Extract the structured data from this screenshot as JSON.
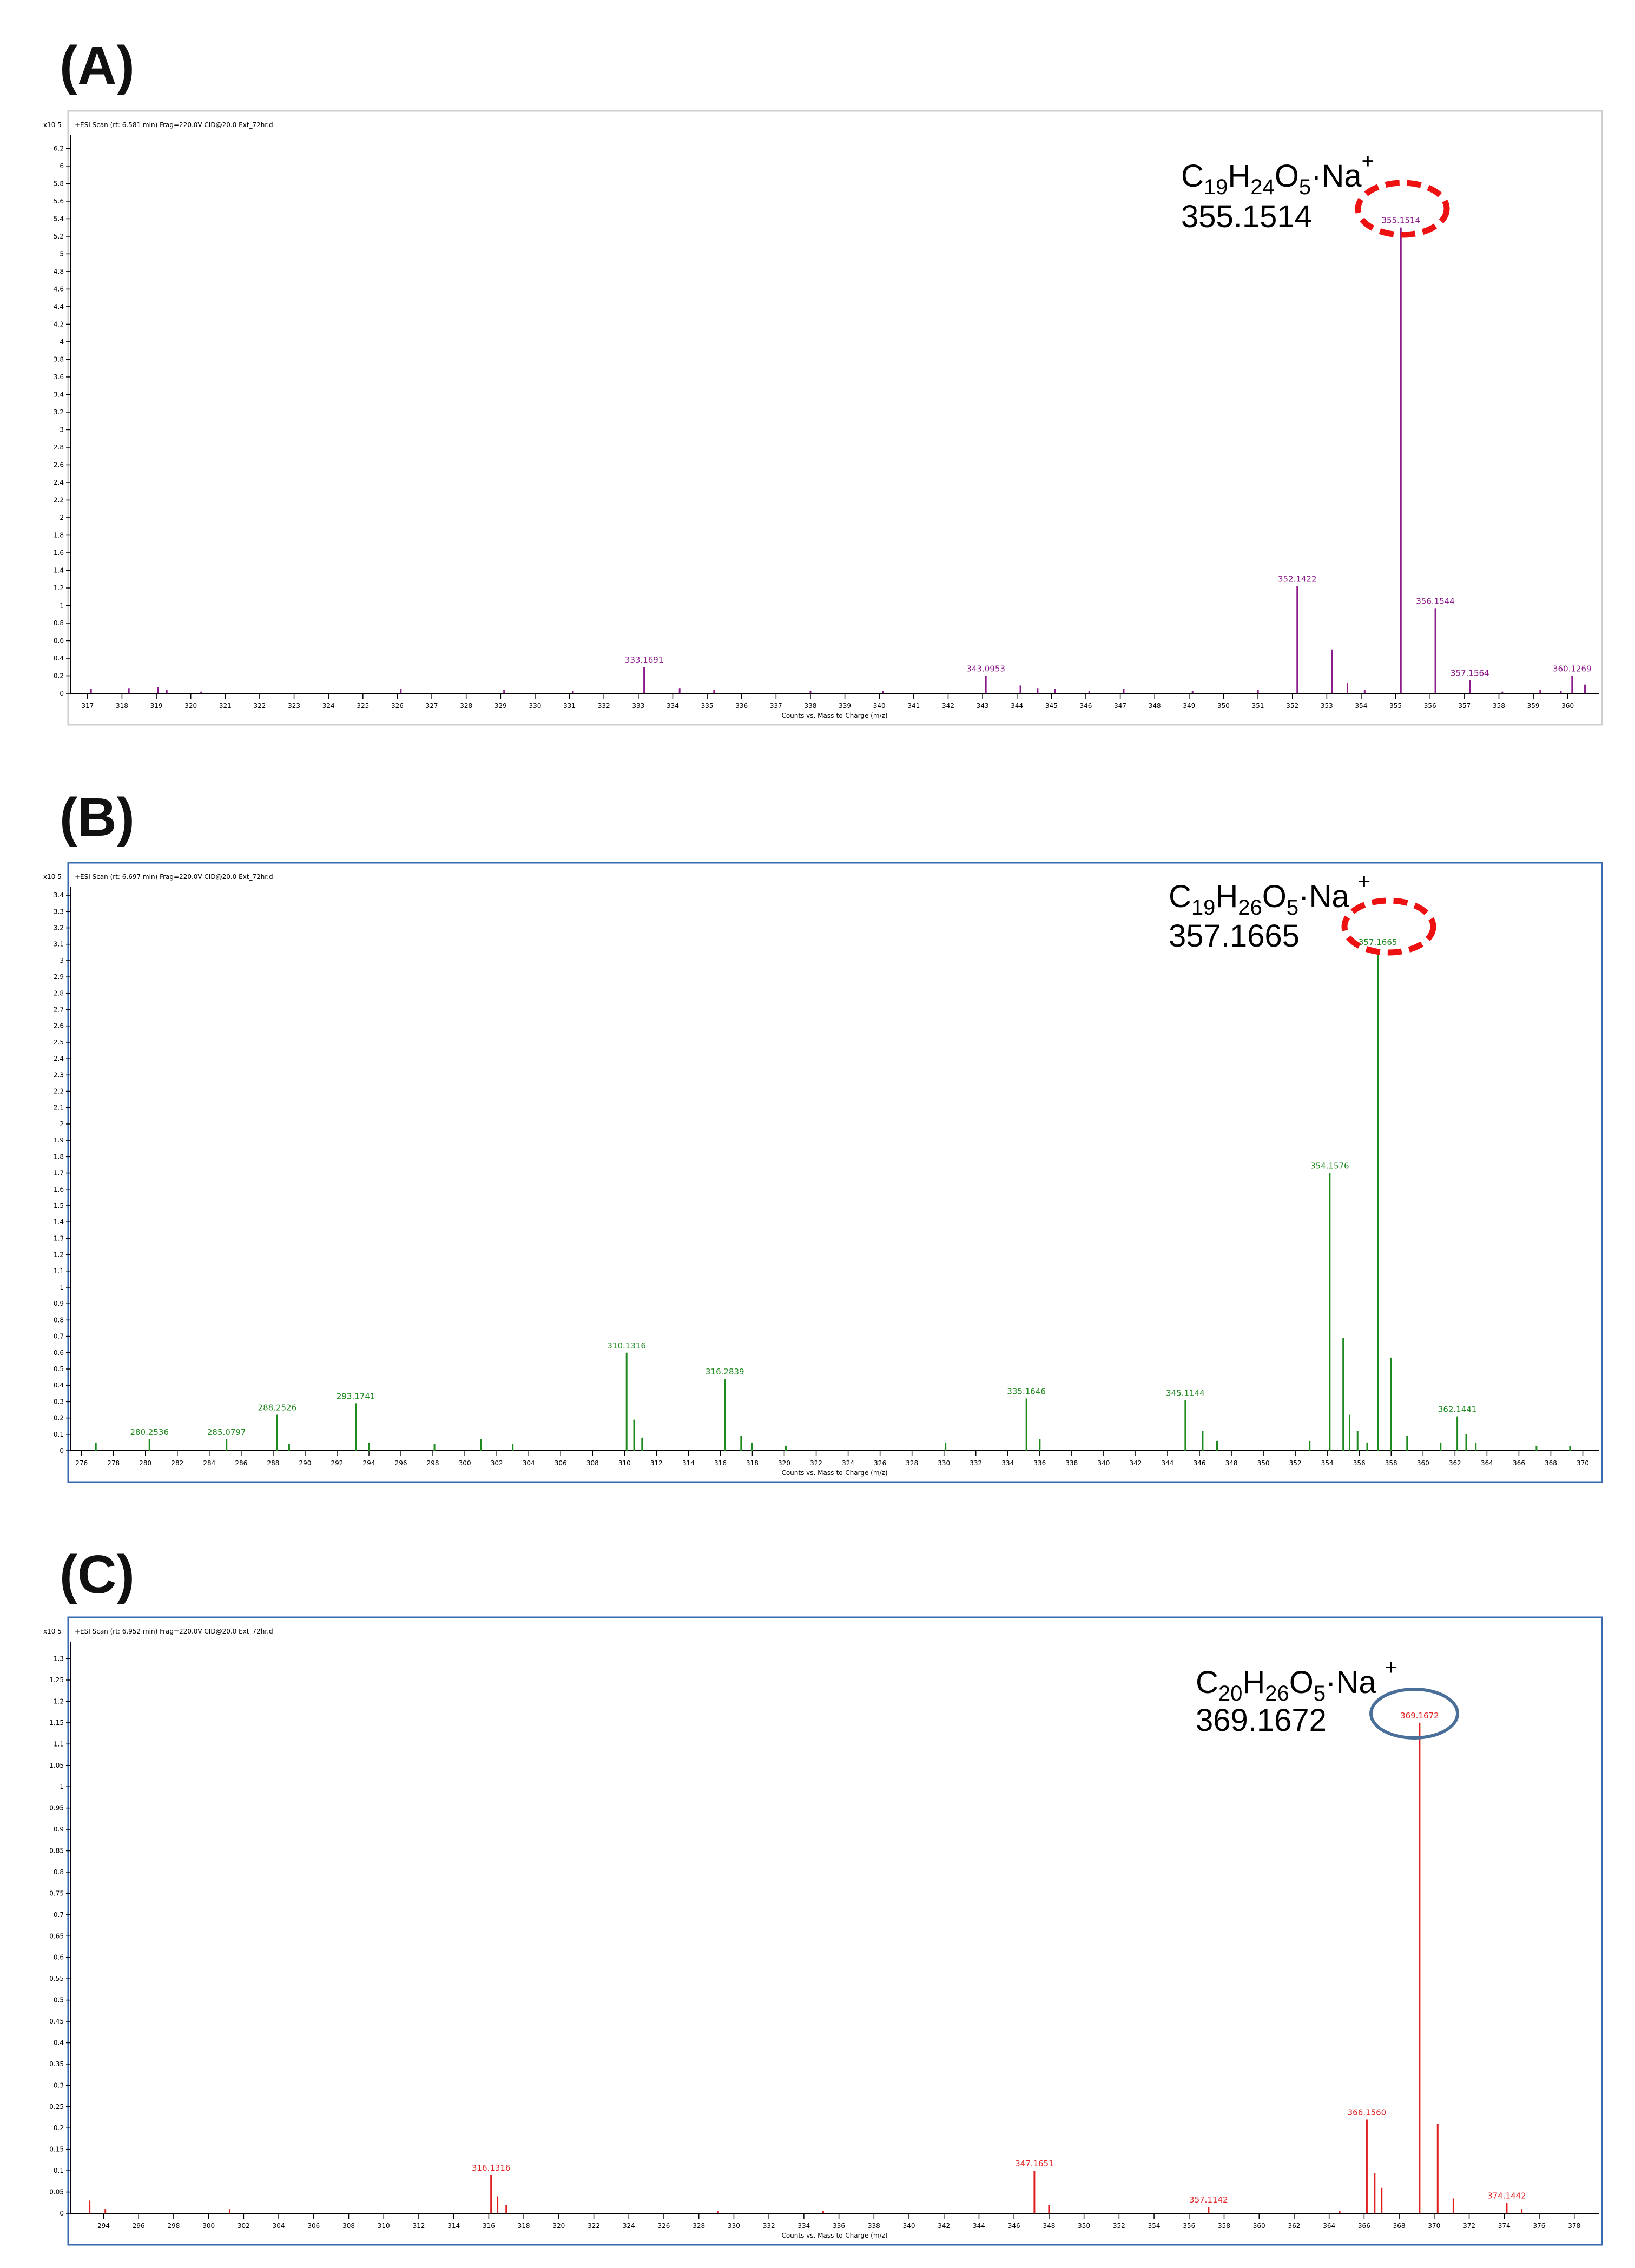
{
  "chart_data": [
    {
      "type": "bar",
      "panel": "(A)",
      "header": "+ESI Scan (rt: 6.581 min) Frag=220.0V CID@20.0 Ext_72hr.d",
      "y_exponent": "x10 5",
      "xlabel": "Counts vs. Mass-to-Charge (m/z)",
      "xlim": [
        316.5,
        360.9
      ],
      "ylim": [
        0,
        6.35
      ],
      "xticks": [
        317,
        318,
        319,
        320,
        321,
        322,
        323,
        324,
        325,
        326,
        327,
        328,
        329,
        330,
        331,
        332,
        333,
        334,
        335,
        336,
        337,
        338,
        339,
        340,
        341,
        342,
        343,
        344,
        345,
        346,
        347,
        348,
        349,
        350,
        351,
        352,
        353,
        354,
        355,
        356,
        357,
        358,
        359,
        360
      ],
      "yticks": [
        0,
        0.2,
        0.4,
        0.6,
        0.8,
        1,
        1.2,
        1.4,
        1.6,
        1.8,
        2,
        2.2,
        2.4,
        2.6,
        2.8,
        3,
        3.2,
        3.4,
        3.6,
        3.8,
        4,
        4.2,
        4.4,
        4.6,
        4.8,
        5,
        5.2,
        5.4,
        5.6,
        5.8,
        6,
        6.2
      ],
      "color": "#8b1a8b",
      "peaks": [
        {
          "x": 355.1514,
          "y": 5.3,
          "label": "355.1514"
        },
        {
          "x": 352.1422,
          "y": 1.22,
          "label": "352.1422"
        },
        {
          "x": 356.1544,
          "y": 0.97,
          "label": "356.1544"
        },
        {
          "x": 353.15,
          "y": 0.5
        },
        {
          "x": 333.1691,
          "y": 0.3,
          "label": "333.1691"
        },
        {
          "x": 343.0953,
          "y": 0.2,
          "label": "343.0953"
        },
        {
          "x": 360.1269,
          "y": 0.2,
          "label": "360.1269"
        },
        {
          "x": 357.1564,
          "y": 0.15,
          "label": "357.1564"
        },
        {
          "x": 353.6,
          "y": 0.12
        },
        {
          "x": 360.5,
          "y": 0.1
        },
        {
          "x": 317.1,
          "y": 0.05
        },
        {
          "x": 318.2,
          "y": 0.06
        },
        {
          "x": 319.05,
          "y": 0.07
        },
        {
          "x": 319.3,
          "y": 0.04
        },
        {
          "x": 320.3,
          "y": 0.02
        },
        {
          "x": 326.1,
          "y": 0.05
        },
        {
          "x": 329.1,
          "y": 0.04
        },
        {
          "x": 331.1,
          "y": 0.03
        },
        {
          "x": 334.2,
          "y": 0.06
        },
        {
          "x": 335.2,
          "y": 0.04
        },
        {
          "x": 338.0,
          "y": 0.03
        },
        {
          "x": 340.1,
          "y": 0.03
        },
        {
          "x": 344.1,
          "y": 0.09
        },
        {
          "x": 344.6,
          "y": 0.06
        },
        {
          "x": 345.1,
          "y": 0.05
        },
        {
          "x": 346.1,
          "y": 0.03
        },
        {
          "x": 347.1,
          "y": 0.05
        },
        {
          "x": 349.1,
          "y": 0.03
        },
        {
          "x": 351.0,
          "y": 0.04
        },
        {
          "x": 354.1,
          "y": 0.04
        },
        {
          "x": 358.1,
          "y": 0.02
        },
        {
          "x": 359.2,
          "y": 0.04
        },
        {
          "x": 359.8,
          "y": 0.03
        }
      ],
      "annotation": {
        "formula_parts": [
          [
            "C",
            ""
          ],
          [
            "19",
            "sub"
          ],
          [
            "H",
            ""
          ],
          [
            "24",
            "sub"
          ],
          [
            "O",
            ""
          ],
          [
            "5",
            "sub"
          ],
          [
            "·Na",
            ""
          ],
          [
            "+",
            "sup"
          ]
        ],
        "mass": "355.1514",
        "ring": "dashed-red"
      }
    },
    {
      "type": "bar",
      "panel": "(B)",
      "header": "+ESI Scan (rt: 6.697 min) Frag=220.0V CID@20.0 Ext_72hr.d",
      "y_exponent": "x10 5",
      "xlabel": "Counts vs. Mass-to-Charge (m/z)",
      "xlim": [
        275.3,
        371.0
      ],
      "ylim": [
        0,
        3.45
      ],
      "xticks": [
        276,
        278,
        280,
        282,
        284,
        286,
        288,
        290,
        292,
        294,
        296,
        298,
        300,
        302,
        304,
        306,
        308,
        310,
        312,
        314,
        316,
        318,
        320,
        322,
        324,
        326,
        328,
        330,
        332,
        334,
        336,
        338,
        340,
        342,
        344,
        346,
        348,
        350,
        352,
        354,
        356,
        358,
        360,
        362,
        364,
        366,
        368,
        370
      ],
      "yticks": [
        0,
        0.1,
        0.2,
        0.3,
        0.4,
        0.5,
        0.6,
        0.7,
        0.8,
        0.9,
        1,
        1.1,
        1.2,
        1.3,
        1.4,
        1.5,
        1.6,
        1.7,
        1.8,
        1.9,
        2,
        2.1,
        2.2,
        2.3,
        2.4,
        2.5,
        2.6,
        2.7,
        2.8,
        2.9,
        3,
        3.1,
        3.2,
        3.3,
        3.4
      ],
      "color": "#1f8a1f",
      "peaks": [
        {
          "x": 357.1665,
          "y": 3.07,
          "label": "357.1665"
        },
        {
          "x": 354.1576,
          "y": 1.7,
          "label": "354.1576"
        },
        {
          "x": 355.0,
          "y": 0.69
        },
        {
          "x": 310.1316,
          "y": 0.6,
          "label": "310.1316"
        },
        {
          "x": 358.0,
          "y": 0.57
        },
        {
          "x": 316.2839,
          "y": 0.44,
          "label": "316.2839"
        },
        {
          "x": 335.1646,
          "y": 0.32,
          "label": "335.1646"
        },
        {
          "x": 345.1144,
          "y": 0.31,
          "label": "345.1144"
        },
        {
          "x": 293.1741,
          "y": 0.29,
          "label": "293.1741"
        },
        {
          "x": 288.2526,
          "y": 0.22,
          "label": "288.2526"
        },
        {
          "x": 355.4,
          "y": 0.22
        },
        {
          "x": 362.1441,
          "y": 0.21,
          "label": "362.1441"
        },
        {
          "x": 310.6,
          "y": 0.19
        },
        {
          "x": 346.2,
          "y": 0.12
        },
        {
          "x": 355.9,
          "y": 0.12
        },
        {
          "x": 362.7,
          "y": 0.1
        },
        {
          "x": 317.3,
          "y": 0.09
        },
        {
          "x": 359.0,
          "y": 0.09
        },
        {
          "x": 280.2536,
          "y": 0.07,
          "label": "280.2536"
        },
        {
          "x": 285.0797,
          "y": 0.07,
          "label": "285.0797"
        },
        {
          "x": 311.1,
          "y": 0.08
        },
        {
          "x": 301.0,
          "y": 0.07
        },
        {
          "x": 336.0,
          "y": 0.07
        },
        {
          "x": 276.9,
          "y": 0.05
        },
        {
          "x": 289.0,
          "y": 0.04
        },
        {
          "x": 294.0,
          "y": 0.05
        },
        {
          "x": 298.1,
          "y": 0.04
        },
        {
          "x": 303.0,
          "y": 0.04
        },
        {
          "x": 318.0,
          "y": 0.05
        },
        {
          "x": 320.1,
          "y": 0.03
        },
        {
          "x": 330.1,
          "y": 0.05
        },
        {
          "x": 347.1,
          "y": 0.06
        },
        {
          "x": 352.9,
          "y": 0.06
        },
        {
          "x": 356.5,
          "y": 0.05
        },
        {
          "x": 361.1,
          "y": 0.05
        },
        {
          "x": 363.3,
          "y": 0.05
        },
        {
          "x": 367.1,
          "y": 0.03
        },
        {
          "x": 369.2,
          "y": 0.03
        }
      ],
      "annotation": {
        "formula_parts": [
          [
            "C",
            ""
          ],
          [
            "19",
            "sub"
          ],
          [
            "H",
            ""
          ],
          [
            "26",
            "sub"
          ],
          [
            "O",
            ""
          ],
          [
            "5",
            "sub"
          ],
          [
            "·Na ",
            ""
          ],
          [
            "+",
            "sup"
          ]
        ],
        "mass": "357.1665",
        "ring": "dashed-red"
      }
    },
    {
      "type": "bar",
      "panel": "(C)",
      "header": "+ESI Scan (rt: 6.952 min) Frag=220.0V CID@20.0 Ext_72hr.d",
      "y_exponent": "x10 5",
      "xlabel": "Counts vs. Mass-to-Charge (m/z)",
      "xlim": [
        292.1,
        379.4
      ],
      "ylim": [
        0,
        1.34
      ],
      "xticks": [
        294,
        296,
        298,
        300,
        302,
        304,
        306,
        308,
        310,
        312,
        314,
        316,
        318,
        320,
        322,
        324,
        326,
        328,
        330,
        332,
        334,
        336,
        338,
        340,
        342,
        344,
        346,
        348,
        350,
        352,
        354,
        356,
        358,
        360,
        362,
        364,
        366,
        368,
        370,
        372,
        374,
        376,
        378
      ],
      "yticks": [
        0,
        0.05,
        0.1,
        0.15,
        0.2,
        0.25,
        0.3,
        0.35,
        0.4,
        0.45,
        0.5,
        0.55,
        0.6,
        0.65,
        0.7,
        0.75,
        0.8,
        0.85,
        0.9,
        0.95,
        1,
        1.05,
        1.1,
        1.15,
        1.2,
        1.25,
        1.3
      ],
      "color": "#e02020",
      "peaks": [
        {
          "x": 369.1672,
          "y": 1.15,
          "label": "369.1672"
        },
        {
          "x": 366.156,
          "y": 0.22,
          "label": "366.1560"
        },
        {
          "x": 370.2,
          "y": 0.21
        },
        {
          "x": 347.1651,
          "y": 0.1,
          "label": "347.1651"
        },
        {
          "x": 366.6,
          "y": 0.095
        },
        {
          "x": 316.1316,
          "y": 0.09,
          "label": "316.1316"
        },
        {
          "x": 367.0,
          "y": 0.06
        },
        {
          "x": 374.1442,
          "y": 0.025,
          "label": "374.1442"
        },
        {
          "x": 357.1142,
          "y": 0.015,
          "label": "357.1142"
        },
        {
          "x": 316.5,
          "y": 0.04
        },
        {
          "x": 371.1,
          "y": 0.035
        },
        {
          "x": 293.2,
          "y": 0.03
        },
        {
          "x": 348.0,
          "y": 0.02
        },
        {
          "x": 317.0,
          "y": 0.02
        },
        {
          "x": 294.1,
          "y": 0.01
        },
        {
          "x": 301.2,
          "y": 0.01
        },
        {
          "x": 329.1,
          "y": 0.005
        },
        {
          "x": 335.1,
          "y": 0.005
        },
        {
          "x": 364.6,
          "y": 0.005
        },
        {
          "x": 375.0,
          "y": 0.01
        }
      ],
      "annotation": {
        "formula_parts": [
          [
            "C",
            ""
          ],
          [
            "20",
            "sub"
          ],
          [
            "H",
            ""
          ],
          [
            "26",
            "sub"
          ],
          [
            "O",
            ""
          ],
          [
            "5",
            "sub"
          ],
          [
            "·Na ",
            ""
          ],
          [
            "+",
            "sup"
          ]
        ],
        "mass": "369.1672",
        "ring": "solid-blue"
      }
    }
  ]
}
